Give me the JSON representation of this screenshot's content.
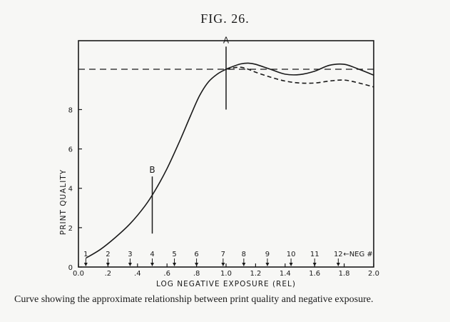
{
  "figure_title": "FIG. 26.",
  "caption": "Curve showing the approximate relationship between print quality and negative exposure.",
  "chart_data": {
    "type": "line",
    "title": "",
    "xlabel": "LOG NEGATIVE EXPOSURE (REL)",
    "ylabel": "PRINT QUALITY",
    "xlim": [
      0,
      2.0
    ],
    "ylim": [
      0,
      11.5
    ],
    "x_ticks": [
      0,
      0.2,
      0.4,
      0.6,
      0.8,
      1.0,
      1.2,
      1.4,
      1.6,
      1.8,
      2.0
    ],
    "x_tick_labels": [
      "0.0",
      ".2",
      ".4",
      ".6",
      ".8",
      "1.0",
      "1.2",
      "1.4",
      "1.6",
      "1.8",
      "2.0"
    ],
    "y_ticks": [
      0,
      2,
      4,
      6,
      8
    ],
    "y_tick_labels": [
      "0",
      "2",
      "4",
      "6",
      "8"
    ],
    "grid": false,
    "series": [
      {
        "style": "solid",
        "x": [
          0.05,
          0.15,
          0.25,
          0.35,
          0.45,
          0.52,
          0.6,
          0.68,
          0.76,
          0.82,
          0.88,
          0.94,
          1.0,
          1.05,
          1.1,
          1.15,
          1.2,
          1.3,
          1.4,
          1.5,
          1.6,
          1.7,
          1.8,
          1.9,
          2.0
        ],
        "y": [
          0.45,
          0.9,
          1.5,
          2.2,
          3.1,
          3.9,
          5.0,
          6.3,
          7.7,
          8.7,
          9.4,
          9.8,
          10.05,
          10.2,
          10.32,
          10.36,
          10.3,
          10.05,
          9.8,
          9.78,
          9.95,
          10.25,
          10.3,
          10.05,
          9.75
        ]
      },
      {
        "style": "dashed",
        "x": [
          1.0,
          1.05,
          1.1,
          1.15,
          1.2,
          1.3,
          1.4,
          1.5,
          1.6,
          1.7,
          1.8,
          1.9,
          2.0
        ],
        "y": [
          10.05,
          10.12,
          10.15,
          10.05,
          9.9,
          9.65,
          9.45,
          9.35,
          9.35,
          9.45,
          9.5,
          9.35,
          9.15
        ]
      }
    ],
    "reference_line": {
      "y": 10.05,
      "style": "dashed"
    },
    "markers": [
      {
        "label": "A",
        "x": 1.0,
        "y_from": 8.0,
        "y_to": 11.2
      },
      {
        "label": "B",
        "x": 0.5,
        "y_from": 1.7,
        "y_to": 4.6
      }
    ],
    "negatives": {
      "labels": [
        "1",
        "2",
        "3",
        "4",
        "5",
        "6",
        "7",
        "8",
        "9",
        "10",
        "11",
        "12"
      ],
      "suffix": "←NEG #",
      "x": [
        0.05,
        0.2,
        0.35,
        0.5,
        0.65,
        0.8,
        0.98,
        1.12,
        1.28,
        1.44,
        1.6,
        1.76
      ]
    }
  }
}
